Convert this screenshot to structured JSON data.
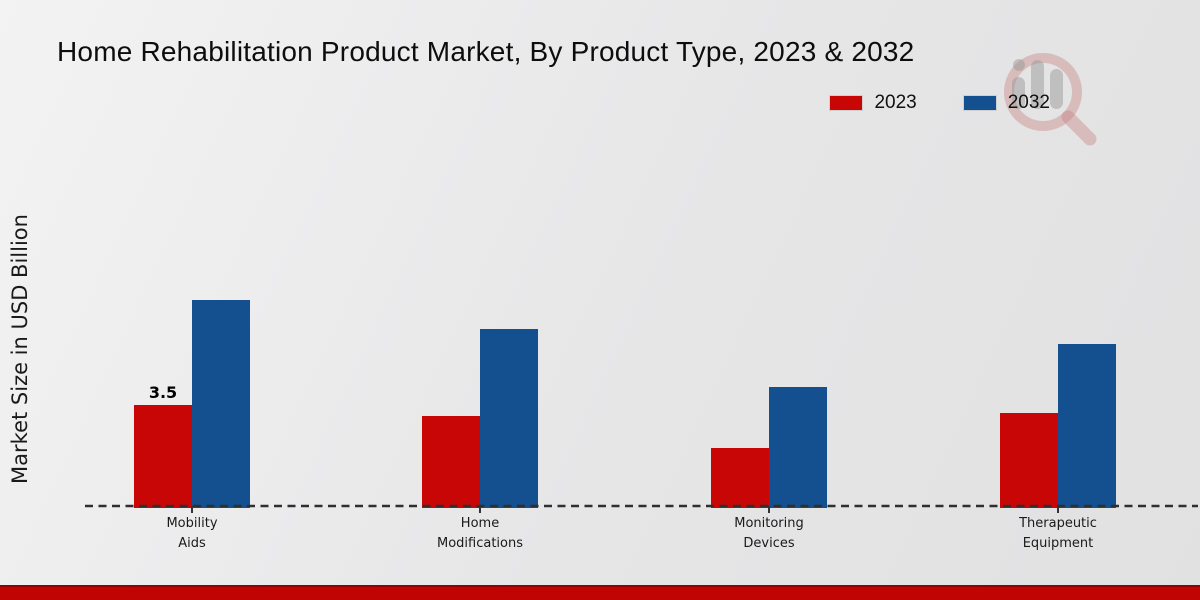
{
  "header": {
    "title": "Home Rehabilitation Product Market, By Product Type, 2023 & 2032"
  },
  "legend": {
    "items": [
      {
        "label": "2023",
        "color": "#c90606"
      },
      {
        "label": "2032",
        "color": "#14508f"
      }
    ]
  },
  "y_axis": {
    "label": "Market Size in USD Billion"
  },
  "chart_data": {
    "type": "bar",
    "title": "Home Rehabilitation Product Market, By Product Type, 2023 & 2032",
    "ylabel": "Market Size in USD Billion",
    "unit": "USD Billion",
    "categories": [
      "Mobility Aids",
      "Home Modifications",
      "Monitoring Devices",
      "Therapeutic Equipment"
    ],
    "category_label_lines": [
      [
        "Mobility",
        "Aids"
      ],
      [
        "Home",
        "Modifications"
      ],
      [
        "Monitoring",
        "Devices"
      ],
      [
        "Therapeutic",
        "Equipment"
      ]
    ],
    "series": [
      {
        "name": "2023",
        "color": "#c90606",
        "values": [
          3.5,
          3.1,
          2.0,
          3.2
        ]
      },
      {
        "name": "2032",
        "color": "#14508f",
        "values": [
          7.1,
          6.1,
          4.1,
          5.6
        ]
      }
    ],
    "data_labels": [
      {
        "series_index": 0,
        "category_index": 0,
        "text": "3.5"
      }
    ],
    "ylim": [
      0,
      8
    ],
    "gridlines": false,
    "baseline_style": "dashed",
    "legend_position": "top-right"
  },
  "watermark": {
    "name": "market-research-magnifier-logo"
  },
  "footer": {
    "color": "#c00404"
  }
}
